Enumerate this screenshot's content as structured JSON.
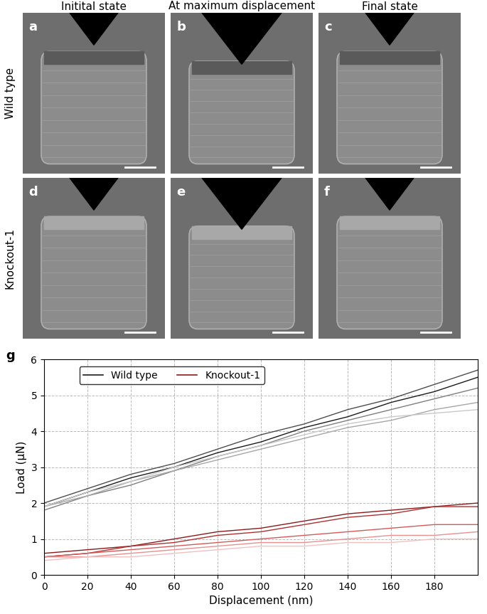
{
  "panels": {
    "columns": [
      "Initital state",
      "At maximum displacement",
      "Final state"
    ],
    "rows": [
      "Wild type",
      "Knockout-1"
    ],
    "letters": [
      [
        "a",
        "b",
        "c"
      ],
      [
        "d",
        "e",
        "f"
      ]
    ]
  },
  "chart_data": {
    "type": "line",
    "panel_label": "g",
    "x": [
      0,
      20,
      40,
      60,
      80,
      100,
      120,
      140,
      160,
      180,
      200
    ],
    "series": [
      {
        "name": "Wild type",
        "color": "#1a1a1a",
        "values": [
          1.9,
          2.3,
          2.7,
          3.0,
          3.4,
          3.7,
          4.1,
          4.4,
          4.8,
          5.1,
          5.5
        ]
      },
      {
        "name": "Wild type",
        "color": "#4d4d4d",
        "values": [
          2.0,
          2.4,
          2.8,
          3.1,
          3.5,
          3.9,
          4.2,
          4.6,
          4.9,
          5.3,
          5.7
        ]
      },
      {
        "name": "Wild type",
        "color": "#7f7f7f",
        "values": [
          1.8,
          2.2,
          2.5,
          2.9,
          3.3,
          3.6,
          4.0,
          4.3,
          4.6,
          4.9,
          5.2
        ]
      },
      {
        "name": "Wild type",
        "color": "#a6a6a6",
        "values": [
          1.9,
          2.2,
          2.6,
          2.9,
          3.2,
          3.5,
          3.8,
          4.1,
          4.3,
          4.6,
          4.8
        ]
      },
      {
        "name": "Wild type",
        "color": "#c8c8c8",
        "values": [
          1.9,
          2.3,
          2.6,
          3.0,
          3.3,
          3.6,
          3.9,
          4.2,
          4.4,
          4.5,
          4.6
        ]
      },
      {
        "name": "Knockout-1",
        "color": "#8b1a1a",
        "values": [
          0.6,
          0.7,
          0.8,
          1.0,
          1.2,
          1.3,
          1.5,
          1.7,
          1.8,
          1.9,
          2.0
        ]
      },
      {
        "name": "Knockout-1",
        "color": "#b03030",
        "values": [
          0.5,
          0.6,
          0.8,
          0.9,
          1.1,
          1.2,
          1.4,
          1.6,
          1.7,
          1.9,
          1.9
        ]
      },
      {
        "name": "Knockout-1",
        "color": "#d45a5a",
        "values": [
          0.5,
          0.6,
          0.7,
          0.8,
          0.9,
          1.0,
          1.1,
          1.2,
          1.3,
          1.4,
          1.4
        ]
      },
      {
        "name": "Knockout-1",
        "color": "#e89090",
        "values": [
          0.5,
          0.5,
          0.6,
          0.7,
          0.8,
          0.9,
          0.9,
          1.0,
          1.1,
          1.1,
          1.2
        ]
      },
      {
        "name": "Knockout-1",
        "color": "#f2c0c0",
        "values": [
          0.4,
          0.5,
          0.5,
          0.6,
          0.7,
          0.8,
          0.8,
          0.9,
          0.9,
          1.0,
          1.0
        ]
      }
    ],
    "xlim": [
      0,
      200
    ],
    "xticks": [
      0,
      20,
      40,
      60,
      80,
      100,
      120,
      140,
      160,
      180
    ],
    "ylim": [
      0,
      6
    ],
    "yticks": [
      0,
      1,
      2,
      3,
      4,
      5,
      6
    ],
    "xlabel": "Displacement (nm)",
    "ylabel": "Load (µN)",
    "grid": true,
    "legend": "upper left",
    "line_style": "solid"
  }
}
